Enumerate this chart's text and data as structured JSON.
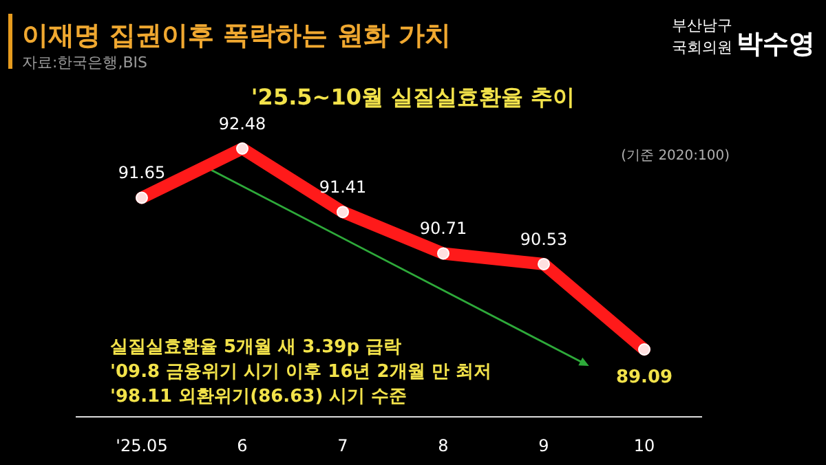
{
  "chart_data": {
    "type": "line",
    "title": "이재명 집권이후 폭락하는 원화 가치",
    "subtitle": "'25.5~10월 실질실효환율 추이",
    "annotations": [
      "자료:한국은행,BIS",
      "(기준 2020:100)",
      "실질실효환율 5개월 새 3.39p 급락",
      "'09.8 금융위기 시기 이후 16년 2개월 만 최저",
      "'98.11 외환위기(86.63) 시기 수준",
      "부산남구",
      "국회의원",
      "박수영"
    ],
    "categories": [
      "'25.05",
      "6",
      "7",
      "8",
      "9",
      "10"
    ],
    "series": [
      {
        "color": "#ff1a1a",
        "values": [
          91.65,
          92.48,
          91.41,
          90.71,
          90.53,
          89.09
        ]
      }
    ],
    "data_labels": true,
    "marker": "circle",
    "line_style": "solid",
    "grid": false
  }
}
